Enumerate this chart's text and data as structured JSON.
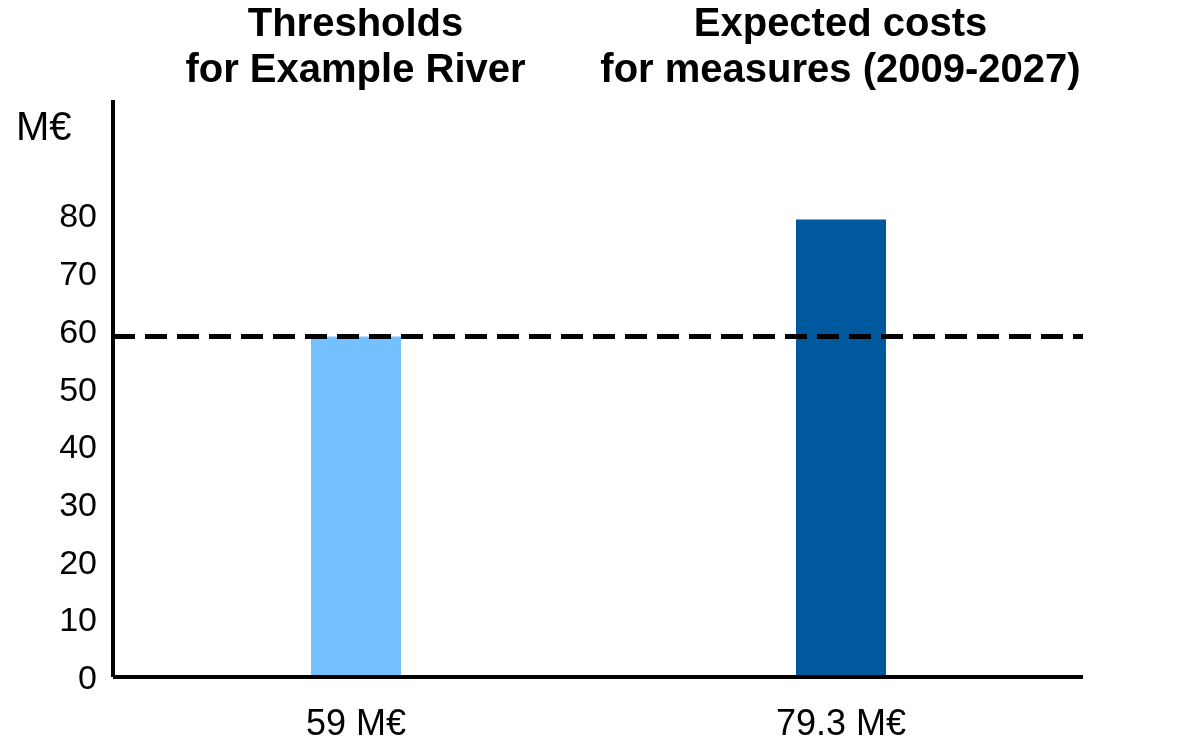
{
  "chart_data": {
    "type": "bar",
    "ylabel": "M€",
    "categories": [
      "Thresholds\nfor Example River",
      "Expected costs\nfor measures (2009-2027)"
    ],
    "values": [
      59,
      79.3
    ],
    "colors": [
      "#73bfff",
      "#00589f"
    ],
    "value_labels": [
      "59 M€",
      "79.3 M€"
    ],
    "ylim": [
      0,
      100
    ],
    "yticks": [
      0,
      10,
      20,
      30,
      40,
      50,
      60,
      70,
      80
    ],
    "ref_lines": [
      {
        "axis": "y",
        "value": 59,
        "color": "#000000",
        "line_style": "dashed"
      }
    ],
    "grid": false,
    "legend": false
  }
}
